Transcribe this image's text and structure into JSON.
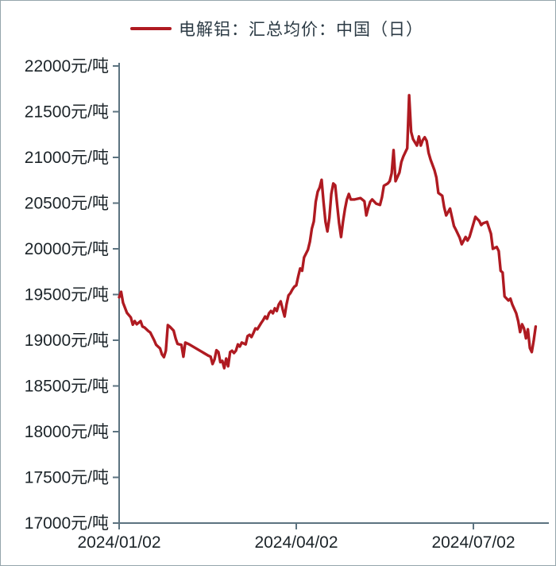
{
  "chart_data": {
    "type": "line",
    "title": "",
    "legend_label": "电解铝：汇总均价：中国（日）",
    "legend_position": "top-center",
    "grid": false,
    "xlabel": "",
    "ylabel": "元/吨",
    "ylim": [
      17000,
      22000
    ],
    "ytick_step": 500,
    "ytick_labels": [
      "22000元/吨",
      "21500元/吨",
      "21000元/吨",
      "20500元/吨",
      "20000元/吨",
      "19500元/吨",
      "19000元/吨",
      "18500元/吨",
      "18000元/吨",
      "17500元/吨",
      "17000元/吨"
    ],
    "xticks": [
      {
        "day": 0,
        "label": "2024/01/02"
      },
      {
        "day": 91,
        "label": "2024/04/02"
      },
      {
        "day": 182,
        "label": "2024/07/02"
      }
    ],
    "x_axis_total_days": 221,
    "axis_color": "#5c7380",
    "series": [
      {
        "name": "电解铝：汇总均价：中国（日）",
        "color": "#af1a21",
        "unit": "元/吨",
        "x_unit": "days_since_2024-01-02",
        "points": [
          [
            0,
            19470
          ],
          [
            1,
            19530
          ],
          [
            2,
            19410
          ],
          [
            4,
            19300
          ],
          [
            6,
            19250
          ],
          [
            7,
            19170
          ],
          [
            8,
            19210
          ],
          [
            9,
            19175
          ],
          [
            11,
            19210
          ],
          [
            12,
            19150
          ],
          [
            13,
            19140
          ],
          [
            15,
            19100
          ],
          [
            16,
            19085
          ],
          [
            18,
            19000
          ],
          [
            19,
            18950
          ],
          [
            20,
            18930
          ],
          [
            21,
            18910
          ],
          [
            22,
            18845
          ],
          [
            23,
            18815
          ],
          [
            24,
            18885
          ],
          [
            25,
            19165
          ],
          [
            26,
            19150
          ],
          [
            28,
            19105
          ],
          [
            29,
            19020
          ],
          [
            30,
            18960
          ],
          [
            32,
            18950
          ],
          [
            33,
            18820
          ],
          [
            34,
            18975
          ],
          [
            36,
            18955
          ],
          [
            46,
            18830
          ],
          [
            47,
            18820
          ],
          [
            48,
            18740
          ],
          [
            49,
            18790
          ],
          [
            50,
            18890
          ],
          [
            51,
            18870
          ],
          [
            52,
            18760
          ],
          [
            53,
            18775
          ],
          [
            54,
            18695
          ],
          [
            55,
            18800
          ],
          [
            56,
            18715
          ],
          [
            57,
            18870
          ],
          [
            58,
            18885
          ],
          [
            59,
            18860
          ],
          [
            60,
            18885
          ],
          [
            61,
            18955
          ],
          [
            62,
            18930
          ],
          [
            63,
            18975
          ],
          [
            65,
            18955
          ],
          [
            66,
            19045
          ],
          [
            67,
            19060
          ],
          [
            68,
            19035
          ],
          [
            69,
            19080
          ],
          [
            70,
            19130
          ],
          [
            71,
            19120
          ],
          [
            73,
            19190
          ],
          [
            74,
            19220
          ],
          [
            75,
            19260
          ],
          [
            76,
            19235
          ],
          [
            77,
            19295
          ],
          [
            78,
            19320
          ],
          [
            79,
            19295
          ],
          [
            80,
            19350
          ],
          [
            81,
            19320
          ],
          [
            82,
            19390
          ],
          [
            83,
            19425
          ],
          [
            84,
            19340
          ],
          [
            85,
            19260
          ],
          [
            86,
            19390
          ],
          [
            87,
            19490
          ],
          [
            88,
            19515
          ],
          [
            89,
            19555
          ],
          [
            90,
            19585
          ],
          [
            91,
            19600
          ],
          [
            92,
            19700
          ],
          [
            93,
            19785
          ],
          [
            94,
            19760
          ],
          [
            95,
            19905
          ],
          [
            97,
            19990
          ],
          [
            98,
            20080
          ],
          [
            99,
            20220
          ],
          [
            100,
            20300
          ],
          [
            101,
            20515
          ],
          [
            102,
            20625
          ],
          [
            103,
            20670
          ],
          [
            104,
            20755
          ],
          [
            105,
            20515
          ],
          [
            106,
            20295
          ],
          [
            107,
            20190
          ],
          [
            108,
            20340
          ],
          [
            109,
            20600
          ],
          [
            110,
            20715
          ],
          [
            111,
            20695
          ],
          [
            112,
            20480
          ],
          [
            113,
            20280
          ],
          [
            114,
            20130
          ],
          [
            115,
            20295
          ],
          [
            116,
            20435
          ],
          [
            117,
            20540
          ],
          [
            118,
            20600
          ],
          [
            119,
            20540
          ],
          [
            121,
            20540
          ],
          [
            124,
            20555
          ],
          [
            126,
            20520
          ],
          [
            127,
            20365
          ],
          [
            128,
            20450
          ],
          [
            129,
            20515
          ],
          [
            130,
            20540
          ],
          [
            132,
            20495
          ],
          [
            134,
            20480
          ],
          [
            135,
            20560
          ],
          [
            136,
            20690
          ],
          [
            138,
            20715
          ],
          [
            139,
            20740
          ],
          [
            140,
            20825
          ],
          [
            141,
            21080
          ],
          [
            142,
            20740
          ],
          [
            144,
            20835
          ],
          [
            145,
            20950
          ],
          [
            146,
            21010
          ],
          [
            148,
            21100
          ],
          [
            149,
            21680
          ],
          [
            150,
            21280
          ],
          [
            151,
            21200
          ],
          [
            153,
            21130
          ],
          [
            154,
            21230
          ],
          [
            155,
            21130
          ],
          [
            156,
            21190
          ],
          [
            157,
            21220
          ],
          [
            158,
            21180
          ],
          [
            159,
            21050
          ],
          [
            160,
            20975
          ],
          [
            162,
            20860
          ],
          [
            163,
            20780
          ],
          [
            164,
            20610
          ],
          [
            166,
            20580
          ],
          [
            167,
            20455
          ],
          [
            168,
            20365
          ],
          [
            170,
            20440
          ],
          [
            172,
            20250
          ],
          [
            173,
            20210
          ],
          [
            175,
            20120
          ],
          [
            176,
            20050
          ],
          [
            178,
            20130
          ],
          [
            179,
            20090
          ],
          [
            180,
            20130
          ],
          [
            181,
            20200
          ],
          [
            183,
            20350
          ],
          [
            185,
            20305
          ],
          [
            186,
            20260
          ],
          [
            187,
            20280
          ],
          [
            189,
            20295
          ],
          [
            191,
            20165
          ],
          [
            192,
            20000
          ],
          [
            194,
            20020
          ],
          [
            195,
            19975
          ],
          [
            196,
            19760
          ],
          [
            197,
            19740
          ],
          [
            198,
            19480
          ],
          [
            200,
            19435
          ],
          [
            201,
            19455
          ],
          [
            202,
            19390
          ],
          [
            204,
            19295
          ],
          [
            205,
            19210
          ],
          [
            206,
            19090
          ],
          [
            207,
            19175
          ],
          [
            208,
            19130
          ],
          [
            209,
            19020
          ],
          [
            210,
            19120
          ],
          [
            211,
            18915
          ],
          [
            212,
            18870
          ],
          [
            213,
            19000
          ],
          [
            214,
            19150
          ]
        ]
      }
    ]
  }
}
